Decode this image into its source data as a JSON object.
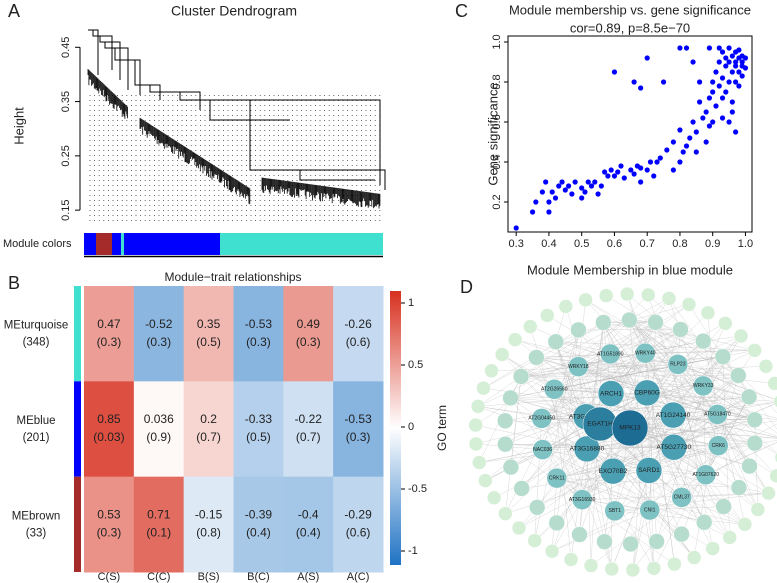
{
  "chart_data": [
    {
      "type": "dendrogram",
      "label": "A",
      "title": "Cluster Dendrogram",
      "ylabel": "Height",
      "ylim": [
        0.13,
        0.48
      ],
      "yticks": [
        0.15,
        0.25,
        0.35,
        0.45
      ],
      "module_colors_label": "Module colors"
    },
    {
      "type": "heatmap",
      "label": "B",
      "title": "Module−trait relationships",
      "columns": [
        "C(S)",
        "C(C)",
        "B(S)",
        "B(C)",
        "A(S)",
        "A(C)"
      ],
      "rows": [
        {
          "name": "MEturquoise",
          "count": "(348)",
          "color": "#40e0d0"
        },
        {
          "name": "MEblue",
          "count": "(201)",
          "color": "#0000ff"
        },
        {
          "name": "MEbrown",
          "count": "(33)",
          "color": "#a52a2a"
        }
      ],
      "values": [
        [
          0.47,
          -0.52,
          0.35,
          -0.53,
          0.49,
          -0.26
        ],
        [
          0.85,
          0.036,
          0.2,
          -0.33,
          -0.22,
          -0.53
        ],
        [
          0.53,
          0.71,
          -0.15,
          -0.39,
          -0.4,
          -0.29
        ]
      ],
      "p_labels": [
        [
          "(0.3)",
          "(0.3)",
          "(0.5)",
          "(0.3)",
          "(0.3)",
          "(0.6)"
        ],
        [
          "(0.03)",
          "(0.9)",
          "(0.7)",
          "(0.5)",
          "(0.7)",
          "(0.3)"
        ],
        [
          "(0.3)",
          "(0.1)",
          "(0.8)",
          "(0.4)",
          "(0.4)",
          "(0.6)"
        ]
      ],
      "colormap": [
        "#1f72c4",
        "#ffffff",
        "#d7301f"
      ],
      "clim": [
        -1,
        1
      ],
      "cticks": [
        -1,
        -0.5,
        0,
        0.5,
        1
      ],
      "colorbar_label": "GO term"
    },
    {
      "type": "scatter",
      "label": "C",
      "title": "Module membership vs. gene significance",
      "subtitle": "cor=0.89, p=8.5e−70",
      "xlabel": "Module Membership in blue module",
      "ylabel": "Gene significance",
      "color": "#0000ff",
      "xlim": [
        0.275,
        1.02
      ],
      "ylim": [
        0.05,
        1.03
      ],
      "xticks": [
        0.3,
        0.4,
        0.5,
        0.6,
        0.7,
        0.8,
        0.9,
        {
          "value": 1,
          "label": "1.0"
        }
      ],
      "yticks": [
        0.2,
        0.4,
        0.6,
        0.8,
        {
          "value": 1,
          "label": "1.0"
        }
      ],
      "x": [
        0.3,
        0.35,
        0.36,
        0.38,
        0.39,
        0.4,
        0.4,
        0.41,
        0.42,
        0.43,
        0.44,
        0.45,
        0.46,
        0.47,
        0.48,
        0.5,
        0.5,
        0.51,
        0.52,
        0.53,
        0.54,
        0.55,
        0.56,
        0.57,
        0.58,
        0.59,
        0.6,
        0.61,
        0.62,
        0.63,
        0.65,
        0.66,
        0.67,
        0.68,
        0.68,
        0.7,
        0.71,
        0.72,
        0.73,
        0.74,
        0.76,
        0.78,
        0.78,
        0.8,
        0.8,
        0.81,
        0.82,
        0.83,
        0.84,
        0.85,
        0.85,
        0.86,
        0.87,
        0.88,
        0.88,
        0.89,
        0.89,
        0.9,
        0.9,
        0.9,
        0.91,
        0.91,
        0.92,
        0.92,
        0.93,
        0.93,
        0.93,
        0.94,
        0.94,
        0.94,
        0.95,
        0.95,
        0.95,
        0.96,
        0.96,
        0.96,
        0.96,
        0.97,
        0.97,
        0.97,
        0.97,
        0.98,
        0.98,
        0.98,
        0.98,
        0.99,
        0.99,
        0.99,
        0.99,
        1.0,
        1.0,
        0.6,
        0.7,
        0.75,
        0.8,
        0.82,
        0.66,
        0.68,
        0.84,
        0.86,
        0.89,
        0.92,
        0.95,
        0.97,
        0.93
      ],
      "y": [
        0.07,
        0.15,
        0.2,
        0.25,
        0.3,
        0.2,
        0.15,
        0.25,
        0.22,
        0.28,
        0.3,
        0.26,
        0.28,
        0.24,
        0.3,
        0.22,
        0.27,
        0.25,
        0.3,
        0.28,
        0.3,
        0.24,
        0.28,
        0.35,
        0.33,
        0.36,
        0.33,
        0.35,
        0.38,
        0.32,
        0.36,
        0.34,
        0.38,
        0.3,
        0.37,
        0.36,
        0.4,
        0.33,
        0.4,
        0.42,
        0.46,
        0.36,
        0.5,
        0.4,
        0.56,
        0.45,
        0.48,
        0.52,
        0.6,
        0.45,
        0.55,
        0.7,
        0.62,
        0.65,
        0.5,
        0.72,
        0.58,
        0.6,
        0.75,
        0.8,
        0.68,
        0.85,
        0.78,
        0.9,
        0.72,
        0.82,
        0.95,
        0.88,
        0.75,
        0.92,
        0.8,
        0.9,
        0.97,
        0.85,
        0.93,
        0.7,
        0.65,
        0.88,
        0.95,
        0.8,
        0.9,
        0.85,
        0.92,
        0.78,
        0.96,
        0.88,
        0.83,
        0.93,
        0.9,
        0.87,
        0.92,
        0.85,
        0.92,
        0.8,
        0.97,
        0.97,
        0.8,
        0.77,
        0.9,
        0.8,
        0.97,
        0.97,
        0.6,
        0.55,
        0.62
      ]
    },
    {
      "type": "network",
      "label": "D",
      "hubs": [
        "MPK13",
        "EGAT1H"
      ],
      "inner": [
        "CBP60G",
        "AT1G24140",
        "AT5G27730",
        "SARD1",
        "EXO70B2",
        "AT3G16880",
        "AT3G01830",
        "ARCH1"
      ],
      "middle": [
        "WRKY40",
        "RLP23",
        "WRKY33",
        "AT5G18470",
        "CRK6",
        "AT1G07620",
        "CML37",
        "CNI1",
        "SBT1",
        "AT3G16930",
        "CRK11",
        "NAC036",
        "AT2G04450",
        "AT2G26560",
        "WRKY18",
        "AT1G51890"
      ]
    }
  ]
}
